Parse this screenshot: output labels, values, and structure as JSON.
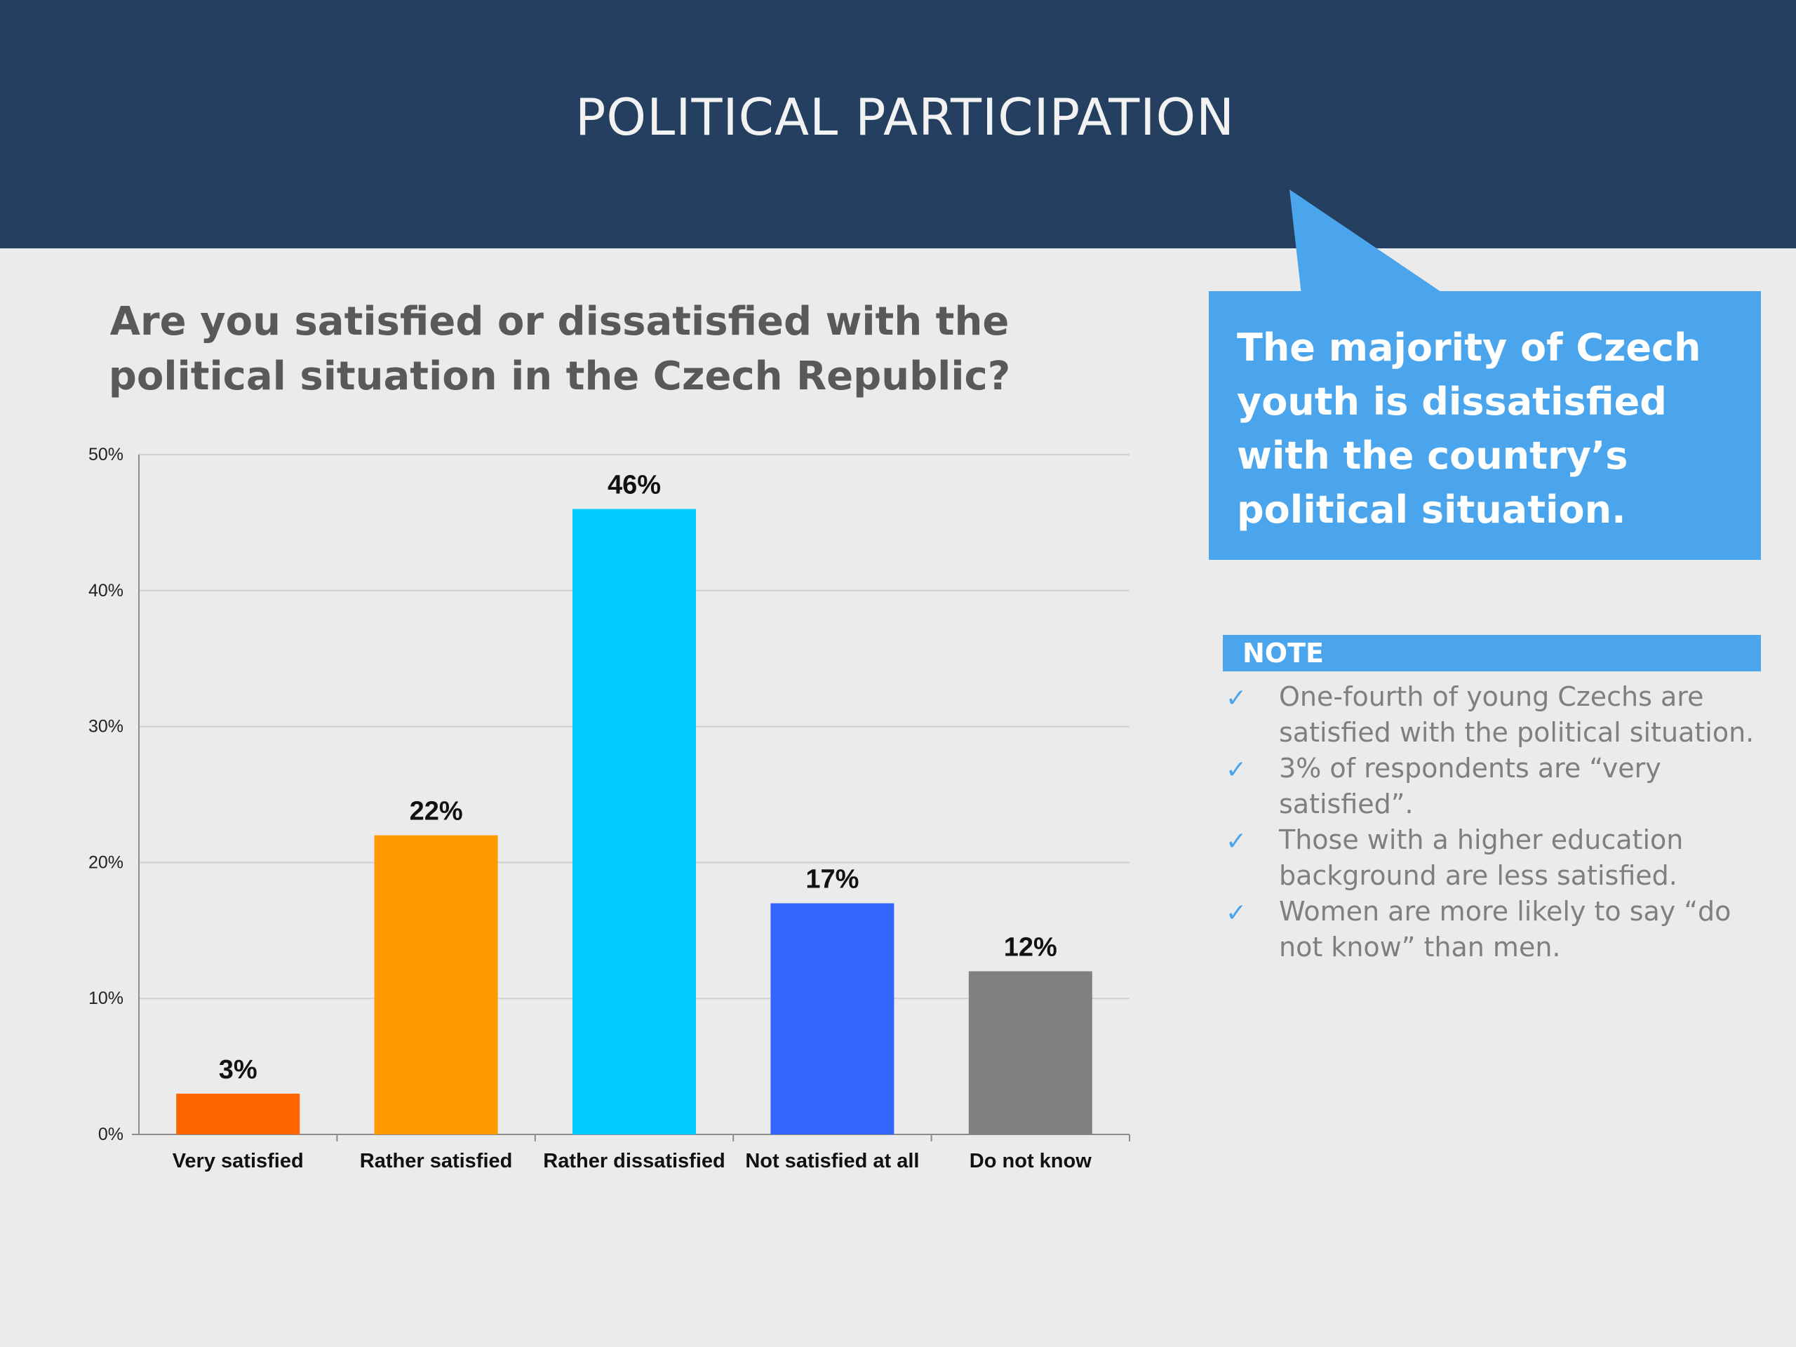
{
  "header": {
    "title": "POLITICAL PARTICIPATION"
  },
  "question": "Are you satisfied or dissatisfied with the political situation in the Czech Republic?",
  "callout": {
    "text": "The majority of Czech youth is dissatisfied with the country’s political situation."
  },
  "note": {
    "label": "NOTE",
    "items": [
      "One-fourth of young Czechs are satisfied with the political situation.",
      "3% of respondents are “very satisfied”.",
      "Those with a higher education background are less satisfied.",
      "Women are more likely to say “do not know” than men."
    ],
    "icon": "check-icon"
  },
  "colors": {
    "header_bg": "#243f5f",
    "accent": "#4aa5ec",
    "background": "#ebebeb"
  },
  "chart_data": {
    "type": "bar",
    "title": "Are you satisfied or dissatisfied with the political situation in the Czech Republic?",
    "categories": [
      "Very satisfied",
      "Rather satisfied",
      "Rather dissatisfied",
      "Not satisfied at all",
      "Do not know"
    ],
    "values": [
      3,
      22,
      46,
      17,
      12
    ],
    "data_labels": [
      "3%",
      "22%",
      "46%",
      "17%",
      "12%"
    ],
    "colors": [
      "#ff6600",
      "#ff9900",
      "#00ccff",
      "#3366ff",
      "#808080"
    ],
    "ylim": [
      0,
      50
    ],
    "yticks": [
      0,
      10,
      20,
      30,
      40,
      50
    ],
    "ytick_labels": [
      "0%",
      "10%",
      "20%",
      "30%",
      "40%",
      "50%"
    ],
    "xlabel": "",
    "ylabel": "",
    "grid": true,
    "legend": false
  }
}
